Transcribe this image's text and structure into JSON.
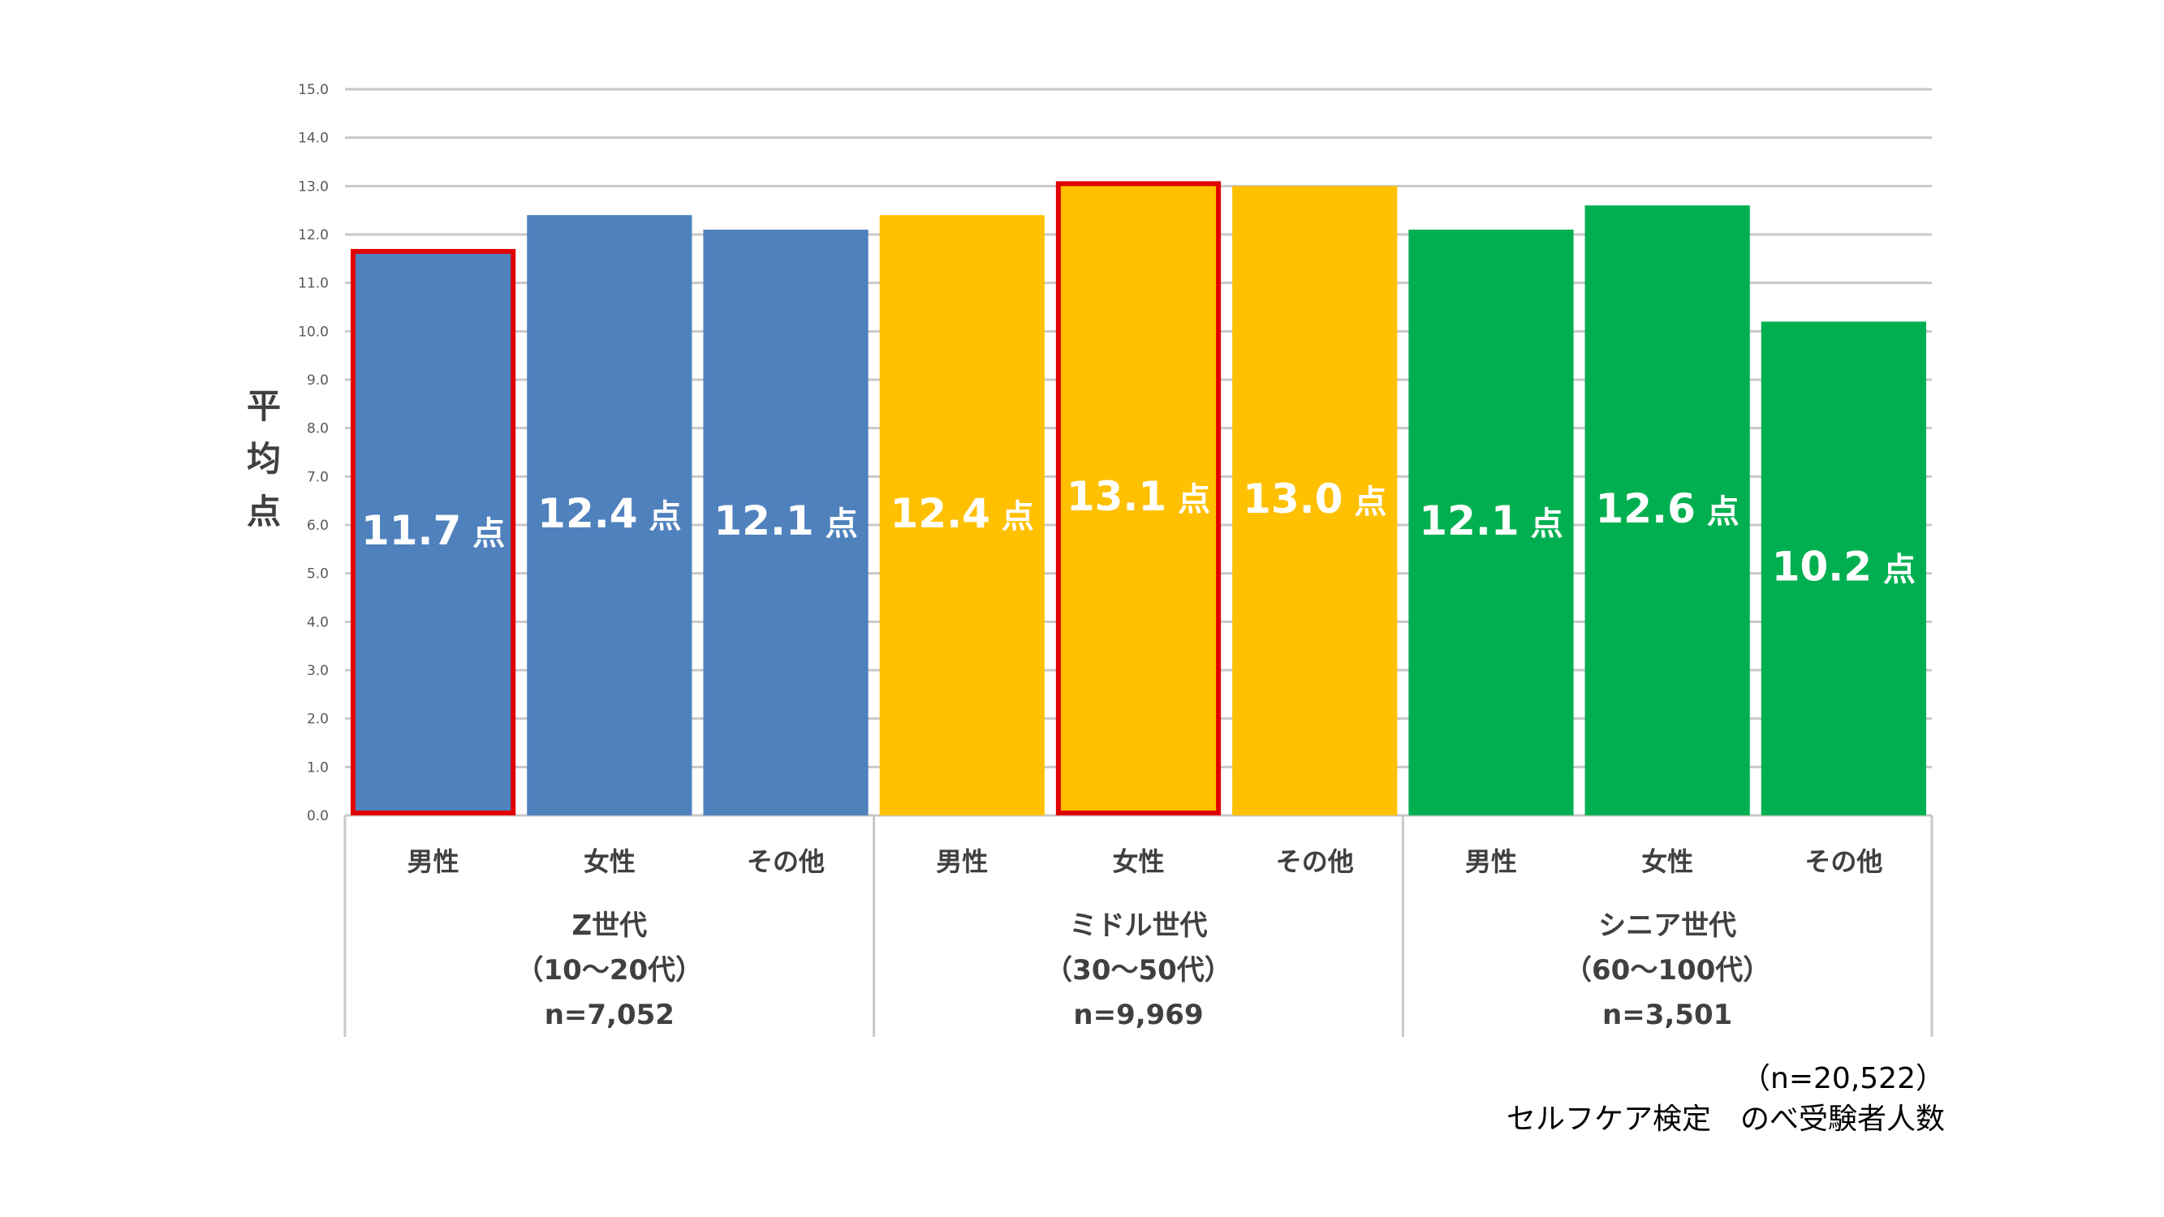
{
  "chart_data": {
    "type": "bar",
    "ylabel": "平均点",
    "ylim": [
      0,
      15
    ],
    "ytick_step": 1,
    "grid": true,
    "groups": [
      {
        "name": "Z世代",
        "range": "（10～20代）",
        "n": "n=7,052",
        "color": "#4F81BD"
      },
      {
        "name": "ミドル世代",
        "range": "（30～50代）",
        "n": "n=9,969",
        "color": "#FFC000"
      },
      {
        "name": "シニア世代",
        "range": "（60～100代）",
        "n": "n=3,501",
        "color": "#00B050"
      }
    ],
    "bars": [
      {
        "group": 0,
        "category": "男性",
        "value": 11.7,
        "label": "11.7 点",
        "highlight": true
      },
      {
        "group": 0,
        "category": "女性",
        "value": 12.4,
        "label": "12.4 点",
        "highlight": false
      },
      {
        "group": 0,
        "category": "その他",
        "value": 12.1,
        "label": "12.1 点",
        "highlight": false
      },
      {
        "group": 1,
        "category": "男性",
        "value": 12.4,
        "label": "12.4 点",
        "highlight": false
      },
      {
        "group": 1,
        "category": "女性",
        "value": 13.1,
        "label": "13.1 点",
        "highlight": true
      },
      {
        "group": 1,
        "category": "その他",
        "value": 13.0,
        "label": "13.0 点",
        "highlight": false
      },
      {
        "group": 2,
        "category": "男性",
        "value": 12.1,
        "label": "12.1 点",
        "highlight": false
      },
      {
        "group": 2,
        "category": "女性",
        "value": 12.6,
        "label": "12.6 点",
        "highlight": false
      },
      {
        "group": 2,
        "category": "その他",
        "value": 10.2,
        "label": "10.2 点",
        "highlight": false
      }
    ],
    "highlight_color": "#E00000"
  },
  "footnote": {
    "total": "（n=20,522）",
    "description": "セルフケア検定　のべ受験者人数"
  }
}
